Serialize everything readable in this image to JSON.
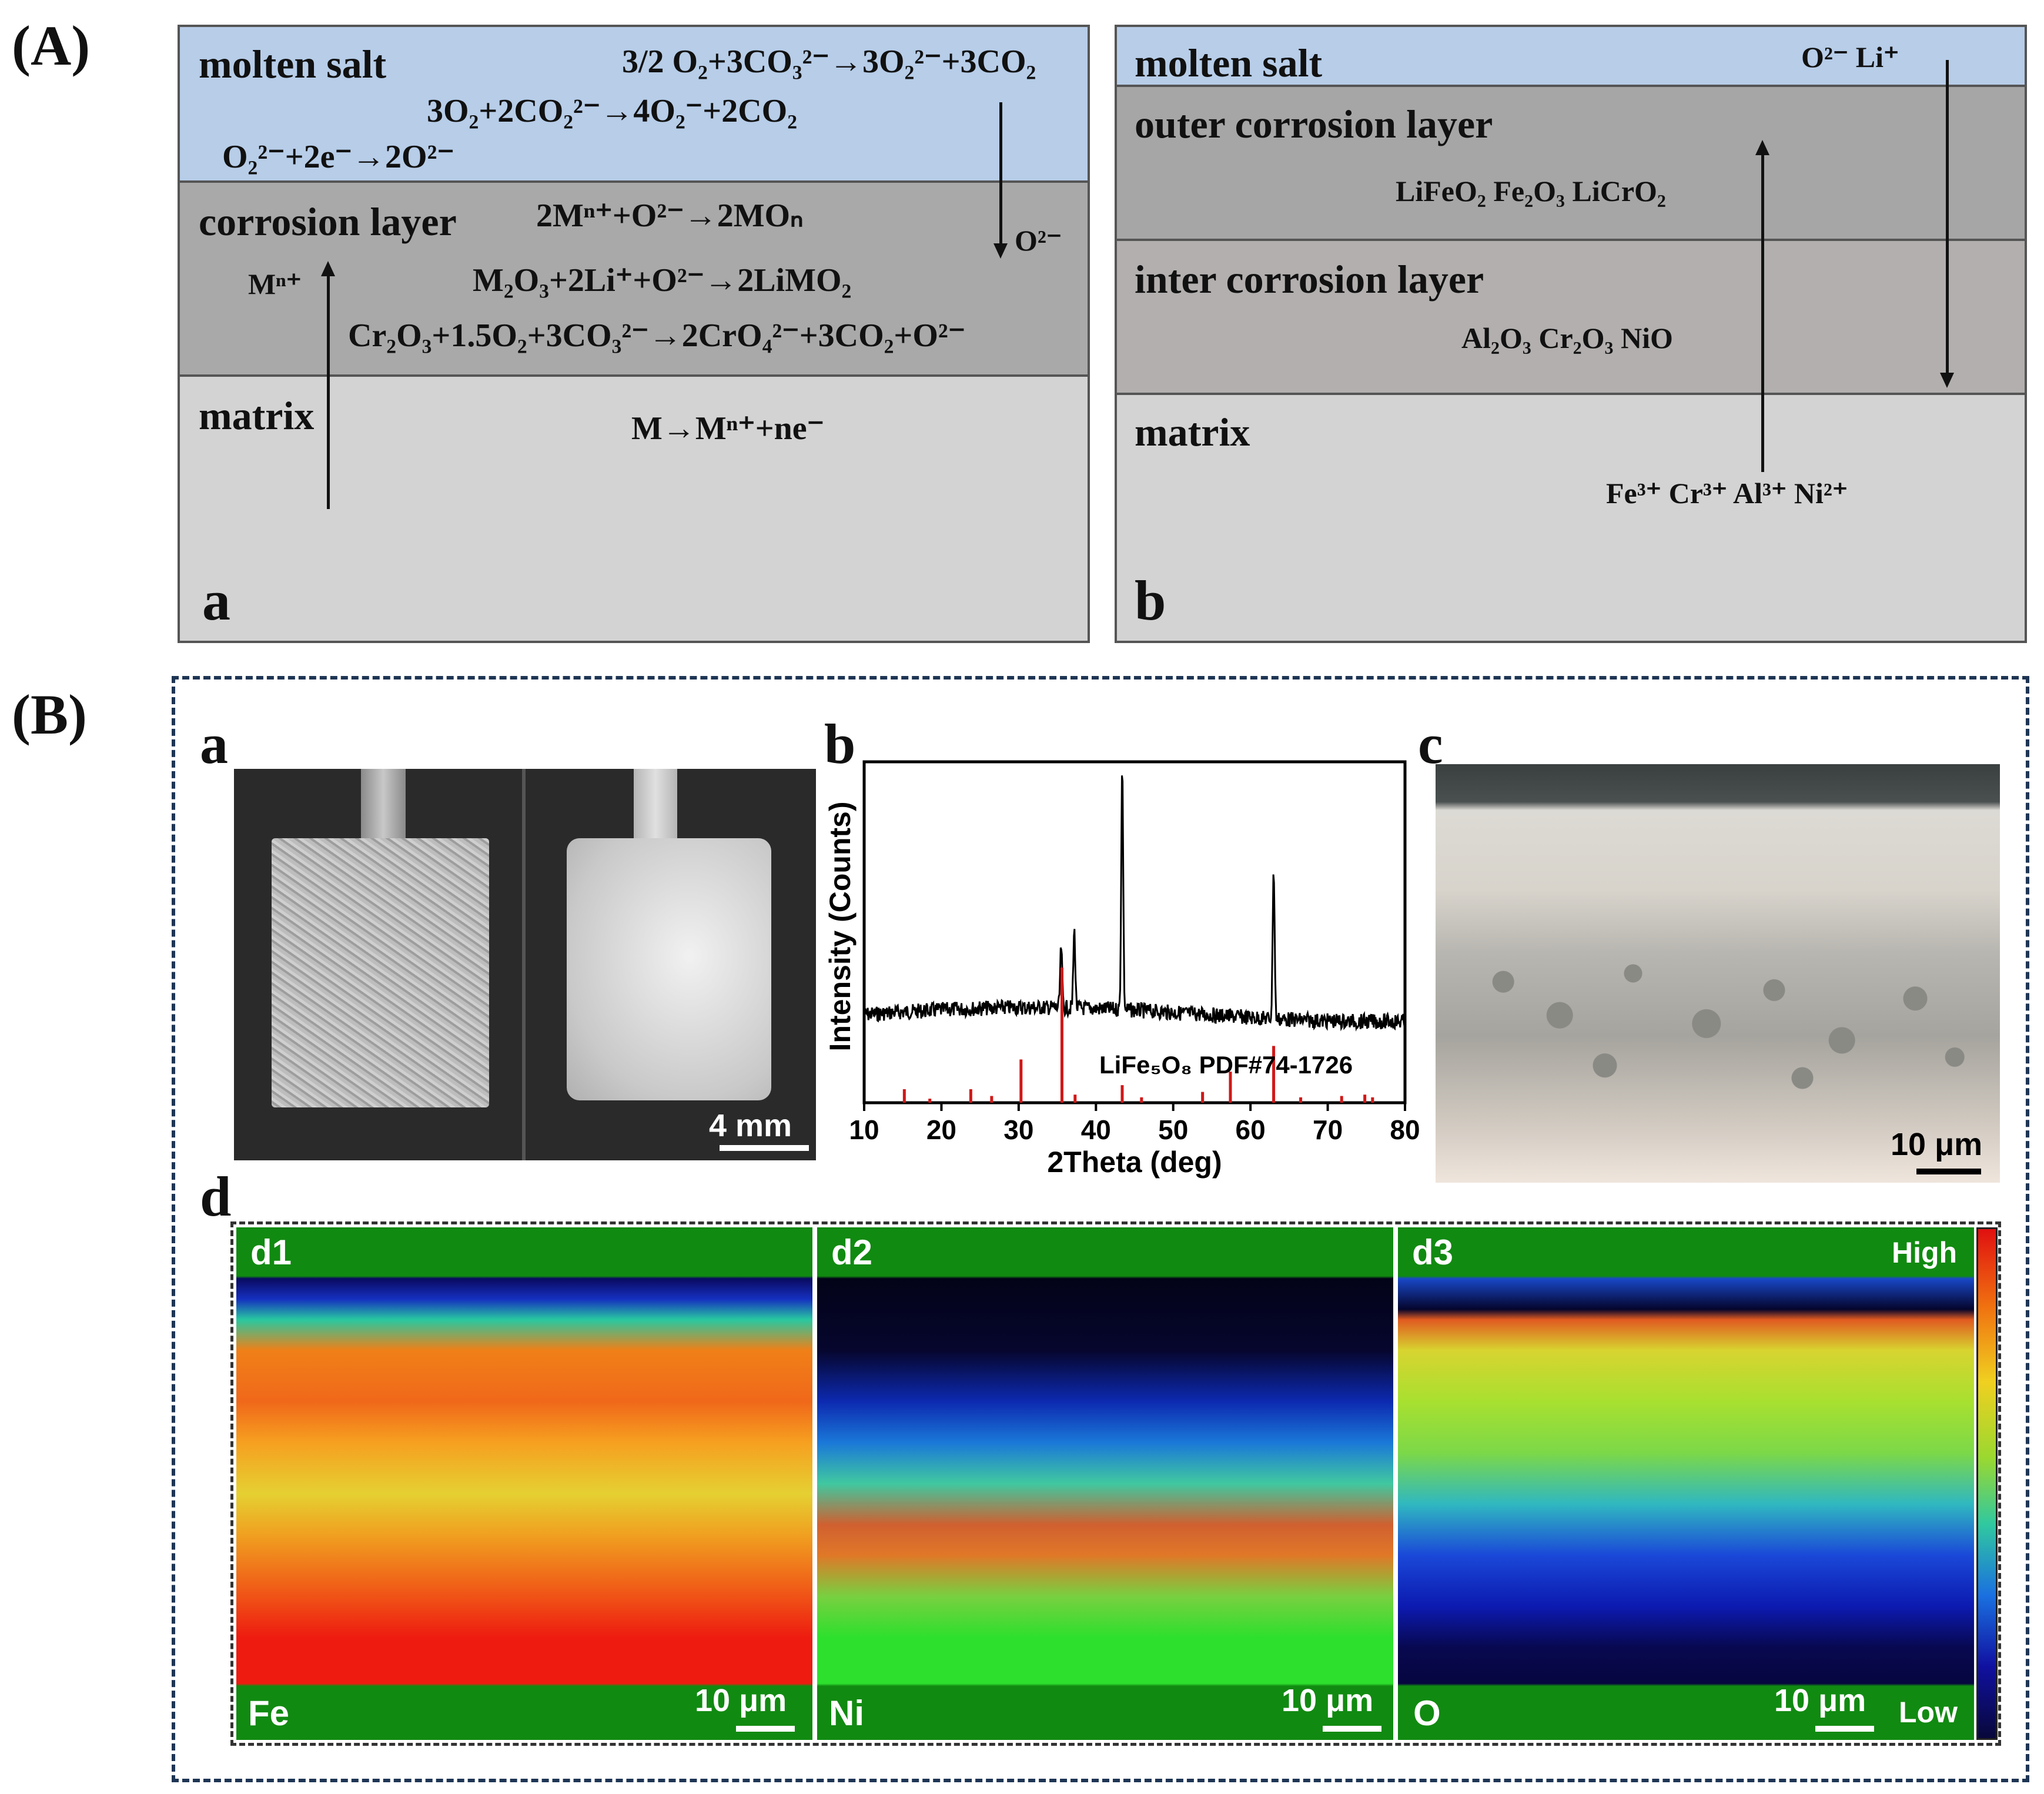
{
  "panelA": {
    "label": "(A)",
    "a": {
      "sublabel": "a",
      "layers": {
        "salt": "molten salt",
        "corrosion": "corrosion layer",
        "matrix": "matrix"
      },
      "equations": {
        "eq1": "3/2 O₂+3CO₃²⁻→3O₂²⁻+3CO₂",
        "eq2": "3O₂+2CO₂²⁻→4O₂⁻+2CO₂",
        "eq3": "O₂²⁻+2e⁻→2O²⁻",
        "eq4": "2Mⁿ⁺+O²⁻→2MOₙ",
        "eq5": "M₂O₃+2Li⁺+O²⁻→2LiMO₂",
        "eq6": "Cr₂O₃+1.5O₂+3CO₃²⁻→2CrO₄²⁻+3CO₂+O²⁻",
        "eq7": "M→Mⁿ⁺+ne⁻"
      },
      "ions": {
        "down": "O²⁻",
        "up": "Mⁿ⁺"
      }
    },
    "b": {
      "sublabel": "b",
      "layers": {
        "salt": "molten salt",
        "outer": "outer corrosion layer",
        "inter": "inter corrosion layer",
        "matrix": "matrix"
      },
      "ions_top": "O²⁻   Li⁺",
      "outer_compounds": "LiFeO₂   Fe₂O₃   LiCrO₂",
      "inter_compounds": "Al₂O₃  Cr₂O₃  NiO",
      "matrix_ions": "Fe³⁺  Cr³⁺  Al³⁺  Ni²⁺"
    }
  },
  "panelB": {
    "label": "(B)",
    "a": {
      "sublabel": "a",
      "scalebar": "4 mm"
    },
    "b": {
      "sublabel": "b"
    },
    "c": {
      "sublabel": "c",
      "scalebar": "10 μm"
    },
    "d": {
      "sublabel": "d",
      "maps": [
        {
          "id": "d1",
          "element": "Fe",
          "scalebar": "10 μm"
        },
        {
          "id": "d2",
          "element": "Ni",
          "scalebar": "10 μm"
        },
        {
          "id": "d3",
          "element": "O",
          "scalebar": "10 μm"
        }
      ],
      "colorbar": {
        "high": "High",
        "low": "Low"
      }
    }
  },
  "chart_data": {
    "type": "line",
    "title": "",
    "xlabel": "2Theta (deg)",
    "ylabel": "Intensity (Counts)",
    "xlim": [
      10,
      80
    ],
    "xticks": [
      10,
      20,
      30,
      40,
      50,
      60,
      70,
      80
    ],
    "reference_label": "LiFe₅O₈ PDF#74-1726",
    "pattern_peaks": [
      {
        "x": 35.5,
        "rel": 0.25
      },
      {
        "x": 37.2,
        "rel": 0.32
      },
      {
        "x": 43.4,
        "rel": 1.0
      },
      {
        "x": 63.0,
        "rel": 0.62
      }
    ],
    "reference_sticks": [
      {
        "x": 15.2,
        "rel": 0.1
      },
      {
        "x": 18.5,
        "rel": 0.03
      },
      {
        "x": 23.8,
        "rel": 0.1
      },
      {
        "x": 26.5,
        "rel": 0.05
      },
      {
        "x": 30.3,
        "rel": 0.32
      },
      {
        "x": 35.6,
        "rel": 1.0
      },
      {
        "x": 37.3,
        "rel": 0.06
      },
      {
        "x": 43.4,
        "rel": 0.13
      },
      {
        "x": 45.9,
        "rel": 0.04
      },
      {
        "x": 53.8,
        "rel": 0.08
      },
      {
        "x": 57.4,
        "rel": 0.23
      },
      {
        "x": 63.0,
        "rel": 0.42
      },
      {
        "x": 66.5,
        "rel": 0.04
      },
      {
        "x": 71.8,
        "rel": 0.05
      },
      {
        "x": 74.8,
        "rel": 0.06
      },
      {
        "x": 75.8,
        "rel": 0.04
      }
    ]
  }
}
